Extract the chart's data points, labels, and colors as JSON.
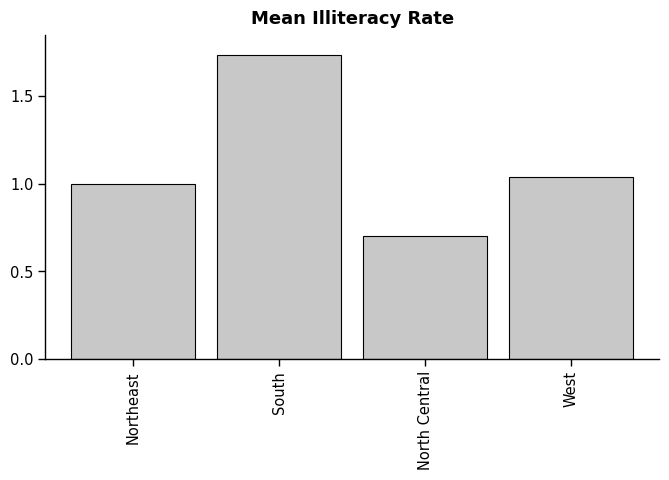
{
  "categories": [
    "Northeast",
    "South",
    "North Central",
    "West"
  ],
  "values": [
    1.0,
    1.737,
    0.7,
    1.04
  ],
  "bar_color": "#c8c8c8",
  "bar_edge_color": "#000000",
  "title": "Mean Illiteracy Rate",
  "title_fontsize": 13,
  "title_fontweight": "bold",
  "ylim": [
    0,
    1.85
  ],
  "yticks": [
    0.0,
    0.5,
    1.0,
    1.5
  ],
  "background_color": "#ffffff",
  "bar_width": 0.85,
  "tick_label_fontsize": 10.5
}
